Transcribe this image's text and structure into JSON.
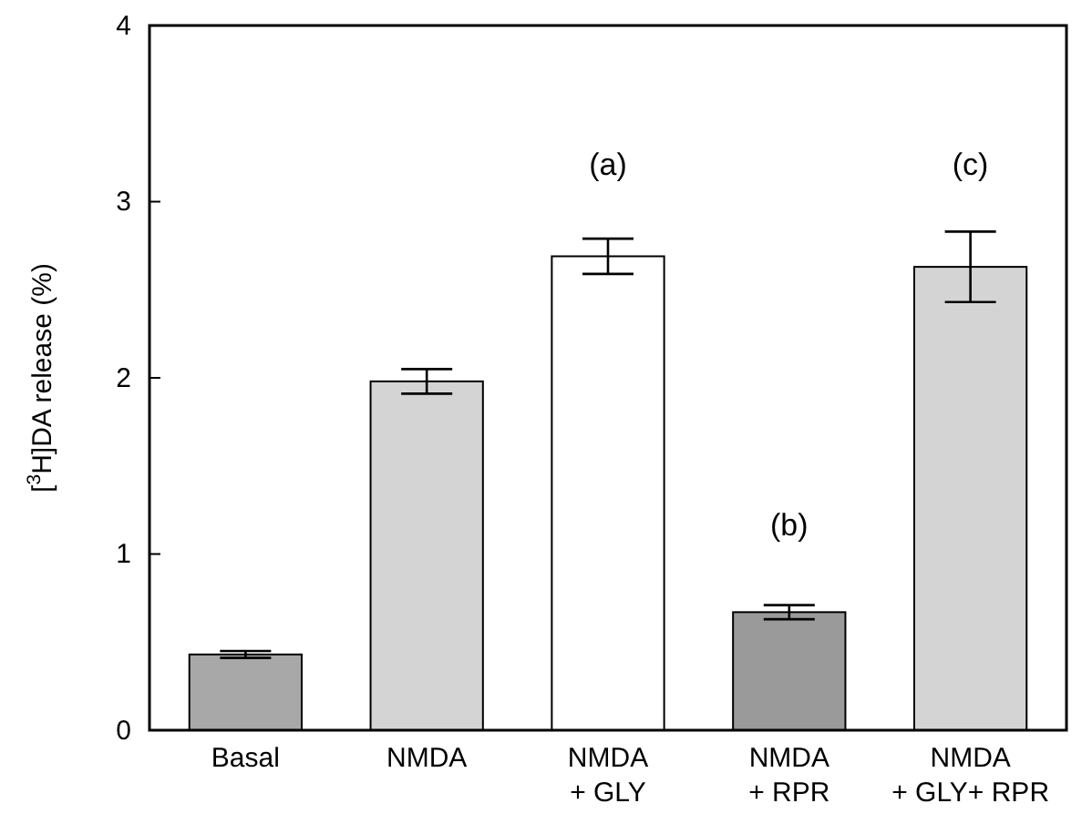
{
  "chart_data": {
    "type": "bar",
    "ylabel": "[$^{3}$H]DA release (%)",
    "categories": [
      "Basal",
      "NMDA",
      "NMDA\n+ GLY",
      "NMDA\n+ RPR",
      "NMDA\n+ GLY+ RPR"
    ],
    "values": [
      0.43,
      1.98,
      2.69,
      0.67,
      2.63
    ],
    "errors": [
      0.02,
      0.07,
      0.1,
      0.04,
      0.2
    ],
    "colors": [
      "#a8a8a8",
      "#d4d4d4",
      "#ffffff",
      "#9a9a9a",
      "#d4d4d4"
    ],
    "ylim": [
      0,
      4
    ],
    "yticks": [
      0,
      1,
      2,
      3,
      4
    ],
    "annotations": [
      "(a)",
      "(b)",
      "(c)"
    ]
  }
}
